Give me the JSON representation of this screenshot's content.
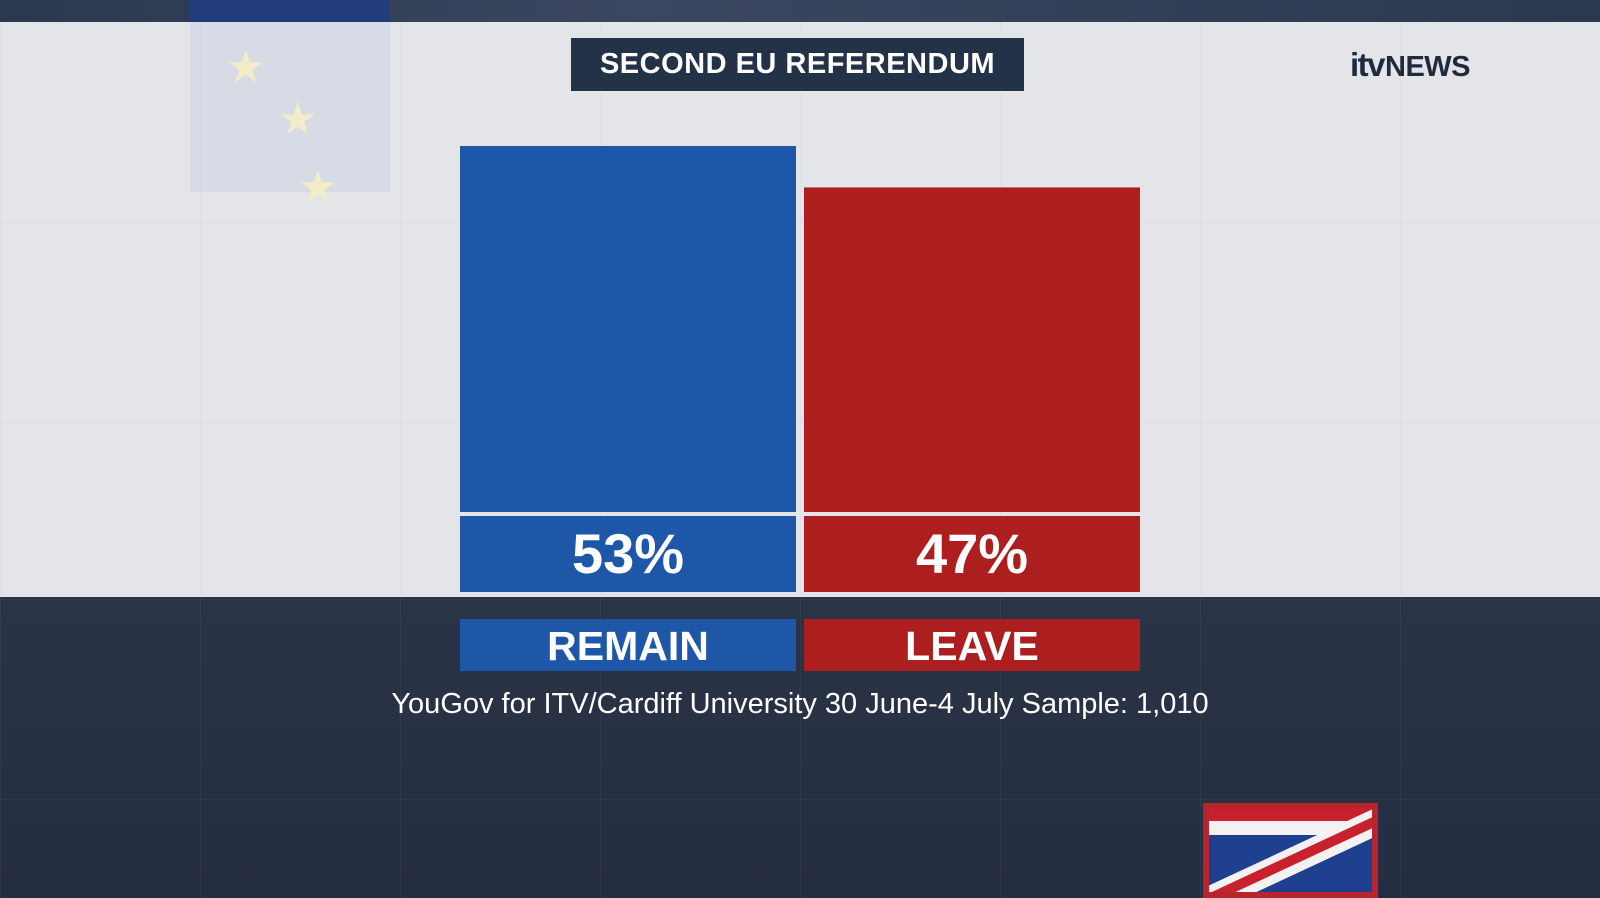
{
  "title": "SECOND EU REFERENDUM",
  "logo": {
    "itv": "itv",
    "news": "NEWS"
  },
  "source": "YouGov for ITV/Cardiff University 30 June-4 July Sample: 1,010",
  "chart_data": {
    "type": "bar",
    "categories": [
      "REMAIN",
      "LEAVE"
    ],
    "values": [
      53,
      47
    ],
    "value_labels": [
      "53%",
      "47%"
    ],
    "colors": [
      "#1e56a8",
      "#ad1f1f"
    ],
    "title": "SECOND EU REFERENDUM"
  }
}
